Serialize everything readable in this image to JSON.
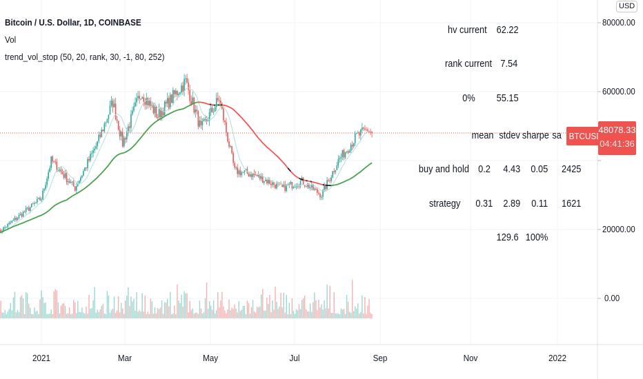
{
  "header": {
    "title": "Bitcoin / U.S. Dollar, 1D, COINBASE",
    "volume_label": "Vol",
    "indicator_label": "trend_vol_stop (50, 20, rank, 30, -1, 80, 252)"
  },
  "currency_button": "USD",
  "price_axis": {
    "labels": [
      "80000.00",
      "60000.00",
      "20000.00",
      "0.00"
    ]
  },
  "last_price": {
    "symbol": "BTCUSD",
    "price": "48078.33",
    "countdown": "04:41:36"
  },
  "time_axis": {
    "labels": [
      "2021",
      "Mar",
      "May",
      "Jul",
      "Sep",
      "Nov",
      "2022"
    ]
  },
  "stats_table": {
    "hv_label": "hv current",
    "hv_value": "62.22",
    "rank_label": "rank current",
    "rank_value": "7.54",
    "pct0_label": "0%",
    "pct0_value": "55.15",
    "headers": [
      "mean",
      "stdev",
      "sharpe",
      "sa"
    ],
    "rows": [
      {
        "label": "buy and hold",
        "values": [
          "0.2",
          "4.43",
          "0.05",
          "2425"
        ]
      },
      {
        "label": "strategy",
        "values": [
          "0.31",
          "2.89",
          "0.11",
          "1621"
        ]
      }
    ],
    "pct100_label": "100%",
    "pct100_value": "129.6"
  },
  "colors": {
    "up": "#26a69a",
    "down": "#ef5350",
    "ma_long": "#131722",
    "ma_up": "#43a047",
    "ma_down": "#ef5350",
    "ma_fast": "#b2dfdb"
  },
  "chart_data": {
    "type": "candlestick",
    "title": "Bitcoin / U.S. Dollar, 1D, COINBASE",
    "ylim": [
      -20000,
      84000
    ],
    "price_keypoints": [
      {
        "date": "2020-12-01",
        "close": 19000
      },
      {
        "date": "2021-01-01",
        "close": 29000
      },
      {
        "date": "2021-01-08",
        "close": 40000
      },
      {
        "date": "2021-01-25",
        "close": 32000
      },
      {
        "date": "2021-02-10",
        "close": 45000
      },
      {
        "date": "2021-02-21",
        "close": 57000
      },
      {
        "date": "2021-02-28",
        "close": 45000
      },
      {
        "date": "2021-03-13",
        "close": 60000
      },
      {
        "date": "2021-03-25",
        "close": 53000
      },
      {
        "date": "2021-04-14",
        "close": 63000
      },
      {
        "date": "2021-04-25",
        "close": 49000
      },
      {
        "date": "2021-05-08",
        "close": 58000
      },
      {
        "date": "2021-05-19",
        "close": 37000
      },
      {
        "date": "2021-06-01",
        "close": 36000
      },
      {
        "date": "2021-06-22",
        "close": 32000
      },
      {
        "date": "2021-07-06",
        "close": 34000
      },
      {
        "date": "2021-07-20",
        "close": 30000
      },
      {
        "date": "2021-08-01",
        "close": 40000
      },
      {
        "date": "2021-08-14",
        "close": 47000
      },
      {
        "date": "2021-08-22",
        "close": 49000
      },
      {
        "date": "2021-08-25",
        "close": 48078
      }
    ]
  }
}
